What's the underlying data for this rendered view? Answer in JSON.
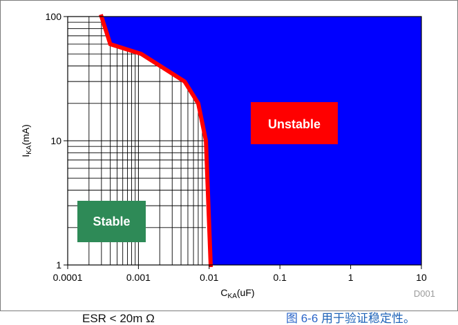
{
  "chart_data": {
    "type": "area",
    "x_scale": "log",
    "y_scale": "log",
    "xlim": [
      0.0001,
      10
    ],
    "ylim": [
      1,
      100
    ],
    "xlabel": {
      "base": "C",
      "subscript": "KA",
      "suffix": "(uF)"
    },
    "ylabel": {
      "base": "I",
      "subscript": "KA",
      "suffix": "(mA)"
    },
    "x_ticks": [
      {
        "value": 0.0001,
        "label": "0.0001"
      },
      {
        "value": 0.001,
        "label": "0.001"
      },
      {
        "value": 0.01,
        "label": "0.01"
      },
      {
        "value": 0.1,
        "label": "0.1"
      },
      {
        "value": 1,
        "label": "1"
      },
      {
        "value": 10,
        "label": "10"
      }
    ],
    "y_ticks": [
      {
        "value": 1,
        "label": "1"
      },
      {
        "value": 10,
        "label": "10"
      },
      {
        "value": 100,
        "label": "100"
      }
    ],
    "boundary": [
      {
        "x": 0.0003,
        "y": 100
      },
      {
        "x": 0.0004,
        "y": 60
      },
      {
        "x": 0.0011,
        "y": 50
      },
      {
        "x": 0.0045,
        "y": 30
      },
      {
        "x": 0.007,
        "y": 20
      },
      {
        "x": 0.009,
        "y": 10
      },
      {
        "x": 0.0105,
        "y": 1
      }
    ],
    "grid_region_x": [
      0.0001,
      0.009
    ],
    "region_labels": {
      "unstable": "Unstable",
      "stable": "Stable"
    },
    "source_id": "D001",
    "colors": {
      "unstable_fill": "#0000ff",
      "boundary": "#ff0000",
      "unstable_box": "#ff0000",
      "stable_box": "#2e8a57",
      "grid": "#000000"
    }
  },
  "bottom_text": {
    "left": "ESR < 20m Ω",
    "right_prefix": "图 6-6",
    "right_suffix": " 用于验证稳定性。"
  }
}
